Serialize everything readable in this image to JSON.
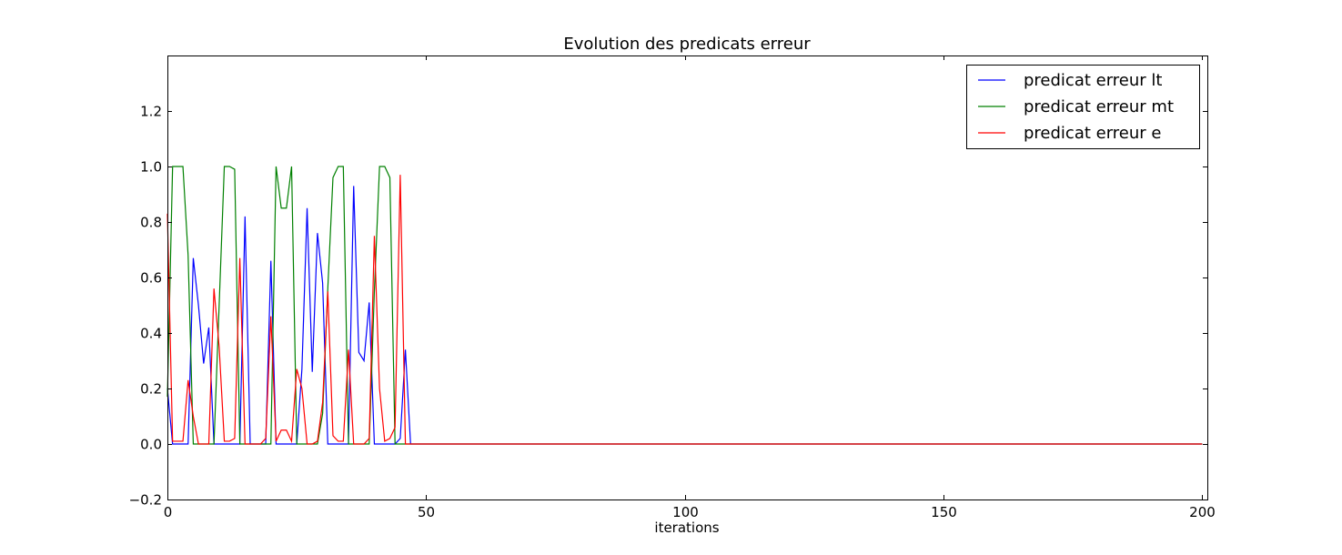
{
  "chart_data": {
    "type": "line",
    "title": "Evolution des predicats erreur",
    "xlabel": "iterations",
    "ylabel": "",
    "xlim": [
      0,
      201
    ],
    "ylim": [
      -0.2,
      1.4
    ],
    "xticks": [
      0,
      50,
      100,
      150,
      200
    ],
    "xtick_labels": [
      "0",
      "50",
      "100",
      "150",
      "200"
    ],
    "yticks": [
      -0.2,
      0.0,
      0.2,
      0.4,
      0.6,
      0.8,
      1.0,
      1.2
    ],
    "ytick_labels": [
      "−0.2",
      "0.0",
      "0.2",
      "0.4",
      "0.6",
      "0.8",
      "1.0",
      "1.2"
    ],
    "grid": false,
    "legend_position": "top-right",
    "x_end": 200,
    "series": [
      {
        "name": "predicat erreur lt",
        "color": "#0000ff",
        "values": [
          0.2,
          0,
          0,
          0,
          0,
          0.67,
          0.5,
          0.29,
          0.42,
          0,
          0,
          0,
          0,
          0,
          0,
          0.82,
          0,
          0,
          0,
          0,
          0.66,
          0,
          0,
          0,
          0,
          0,
          0.27,
          0.85,
          0.26,
          0.76,
          0.58,
          0,
          0,
          0,
          0,
          0,
          0.93,
          0.33,
          0.3,
          0.51,
          0,
          0,
          0,
          0,
          0,
          0.02,
          0.34,
          0
        ]
      },
      {
        "name": "predicat erreur mt",
        "color": "#008000",
        "values": [
          0.17,
          1,
          1,
          1,
          0.68,
          0,
          0,
          0,
          0,
          0,
          0.5,
          1,
          1,
          0.99,
          0,
          0,
          0,
          0,
          0,
          0,
          0,
          1,
          0.85,
          0.85,
          1,
          0,
          0,
          0,
          0,
          0,
          0.11,
          0.56,
          0.96,
          1,
          1,
          0,
          0,
          0,
          0,
          0,
          0.55,
          1,
          1,
          0.96,
          0,
          0
        ]
      },
      {
        "name": "predicat erreur e",
        "color": "#ff0000",
        "values": [
          0.83,
          0.01,
          0.01,
          0.01,
          0.23,
          0.1,
          0,
          0,
          0,
          0.56,
          0.35,
          0.01,
          0.01,
          0.02,
          0.67,
          0,
          0,
          0,
          0,
          0.02,
          0.46,
          0.01,
          0.05,
          0.05,
          0.01,
          0.27,
          0.2,
          0,
          0,
          0.01,
          0.15,
          0.55,
          0.03,
          0.01,
          0.01,
          0.34,
          0,
          0,
          0,
          0.02,
          0.75,
          0.2,
          0.01,
          0.02,
          0.06,
          0.97,
          0
        ]
      }
    ]
  }
}
